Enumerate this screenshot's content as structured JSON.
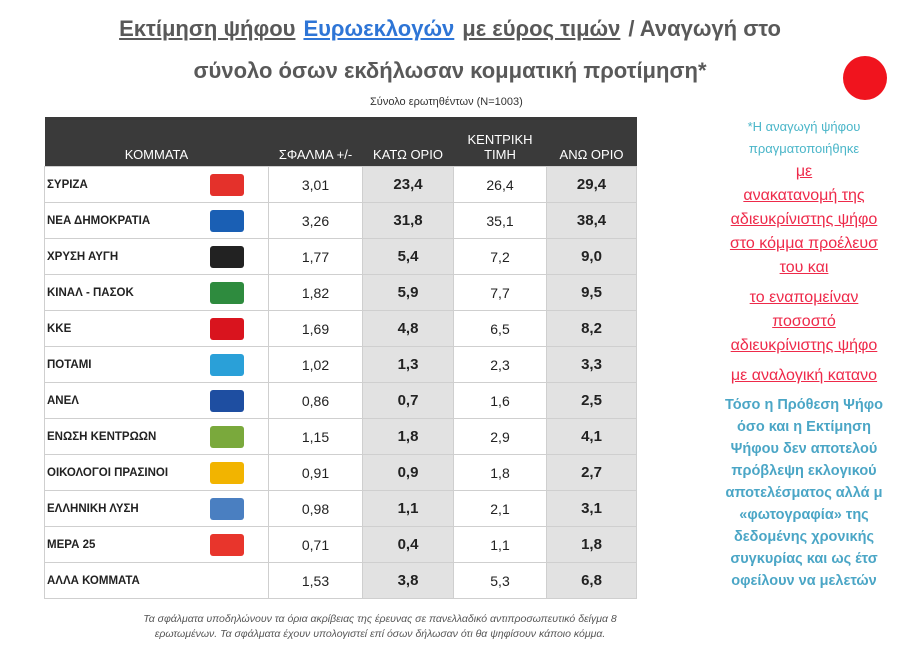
{
  "title": {
    "line1": [
      "Εκτίμηση ψήφου",
      "Ευρωεκλογών",
      "με εύρος τιμών",
      "/ Αναγωγή στο"
    ],
    "line2": "σύνολο όσων εκδήλωσαν κομματική προτίμηση*"
  },
  "subtitle": "Σύνολο ερωτηθέντων (N=1003)",
  "table": {
    "header": [
      "ΚΟΜΜΑΤΑ",
      "ΣΦΑΛΜΑ +/-",
      "ΚΑΤΩ ΟΡΙΟ",
      "ΚΕΝΤΡΙΚΗ ΤΙΜΗ",
      "ΑΝΩ ΟΡΙΟ"
    ],
    "rows": [
      [
        "ΣΥΡΙΖΑ",
        "3,01",
        "23,4",
        "26,4",
        "29,4"
      ],
      [
        "ΝΕΑ ΔΗΜΟΚΡΑΤΙΑ",
        "3,26",
        "31,8",
        "35,1",
        "38,4"
      ],
      [
        "ΧΡΥΣΗ ΑΥΓΗ",
        "1,77",
        "5,4",
        "7,2",
        "9,0"
      ],
      [
        "ΚΙΝΑΛ - ΠΑΣΟΚ",
        "1,82",
        "5,9",
        "7,7",
        "9,5"
      ],
      [
        "ΚΚΕ",
        "1,69",
        "4,8",
        "6,5",
        "8,2"
      ],
      [
        "ΠΟΤΑΜΙ",
        "1,02",
        "1,3",
        "2,3",
        "3,3"
      ],
      [
        "ΑΝΕΛ",
        "0,86",
        "0,7",
        "1,6",
        "2,5"
      ],
      [
        "ΕΝΩΣΗ ΚΕΝΤΡΩΩΝ",
        "1,15",
        "1,8",
        "2,9",
        "4,1"
      ],
      [
        "ΟΙΚΟΛΟΓΟΙ ΠΡΑΣΙΝΟΙ",
        "0,91",
        "0,9",
        "1,8",
        "2,7"
      ],
      [
        "ΕΛΛΗΝΙΚΗ ΛΥΣΗ",
        "0,98",
        "1,1",
        "2,1",
        "3,1"
      ],
      [
        "ΜΕΡΑ 25",
        "0,71",
        "0,4",
        "1,1",
        "1,8"
      ],
      [
        "ΑΛΛΑ ΚΟΜΜΑΤΑ",
        "1,53",
        "3,8",
        "5,3",
        "6,8"
      ]
    ]
  },
  "notes": {
    "gray": [
      "*Η αναγωγή ψήφου",
      "πραγματοποιήθηκε"
    ],
    "red": [
      "με",
      "ανακατανομή της",
      "αδιευκρίνιστης ψήφο",
      "στο κόμμα προέλευσ",
      "του και",
      "το εναπομείναν",
      "ποσοστό",
      "αδιευκρίνιστης ψήφο",
      "με αναλογική κατανο"
    ],
    "blue": [
      "Τόσο η Πρόθεση Ψήφο",
      "όσο και η Εκτίμηση",
      "Ψήφου δεν αποτελού",
      "πρόβλεψη εκλογικού",
      "αποτελέσματος αλλά μ",
      "«φωτογραφία» της",
      "δεδομένης χρονικής",
      "συγκυρίας και ως έτσ",
      "οφείλουν να μελετών"
    ]
  },
  "footnote": [
    "Τα σφάλματα υποδηλώνουν τα όρια ακρίβειας της έρευνας σε πανελλαδικό αντιπροσωπευτικό δείγμα 8",
    "ερωτωμένων. Τα σφάλματα έχουν υπολογιστεί επί όσων δήλωσαν ότι θα ψηφίσουν κάποιο κόμμα."
  ]
}
